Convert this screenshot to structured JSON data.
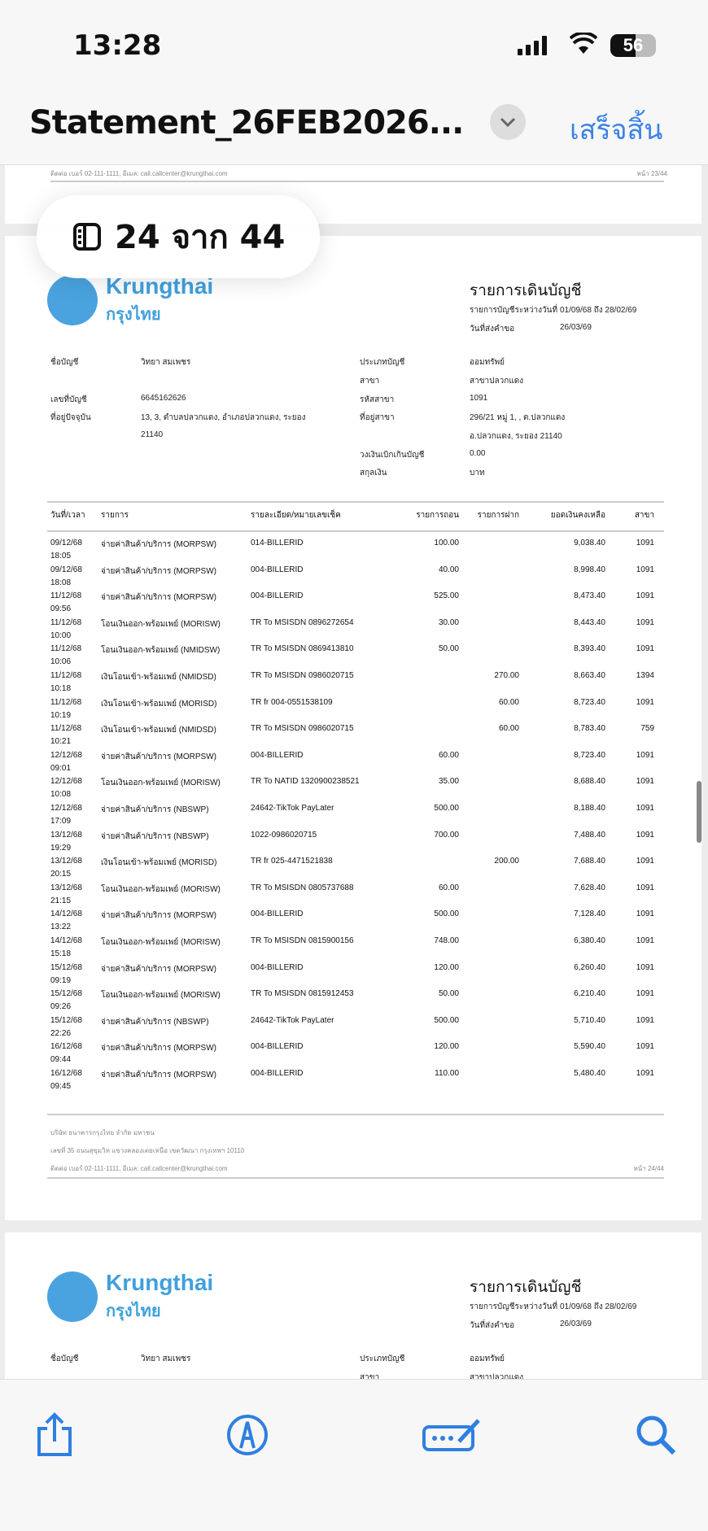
{
  "status_bar": {
    "time": "13:28",
    "battery": "56",
    "battery_level": 56
  },
  "nav": {
    "title": "Statement_26FEB2026...",
    "done": "เสร็จสิ้น"
  },
  "page_indicator": {
    "text": "24 จาก 44",
    "current": 24,
    "total": 44
  },
  "prev_page": {
    "footer_contact": "ติดต่อ เบอร์ 02-111-1111, อีเมล: call.callcenter@krungthai.com",
    "page_no": "หน้า 23/44"
  },
  "bank": {
    "name_en": "Krungthai",
    "name_th": "กรุงไทย",
    "brand_color": "#3fa0dc"
  },
  "statement": {
    "title": "รายการเดินบัญชี",
    "period_label": "รายการบัญชีระหว่างวันที่",
    "period": "01/09/68 ถึง 28/02/69",
    "request_label": "วันที่ส่งคำขอ",
    "request_date": "26/03/69"
  },
  "account": {
    "left": [
      {
        "label": "ชื่อบัญชี",
        "value": "วิทยา สมเพชร"
      },
      {
        "label": "เลขที่บัญชี",
        "value": "6645162626"
      },
      {
        "label": "ที่อยู่ปัจจุบัน",
        "value": "13, 3, ตำบลปลวกแดง, อำเภอปลวกแดง, ระยอง",
        "value2": "21140"
      }
    ],
    "right": [
      {
        "label": "ประเภทบัญชี",
        "value": "ออมทรัพย์"
      },
      {
        "label": "สาขา",
        "value": "สาขาปลวกแดง"
      },
      {
        "label": "รหัสสาขา",
        "value": "1091"
      },
      {
        "label": "ที่อยู่สาขา",
        "value": "296/21 หมู่ 1, , ต.ปลวกแดง",
        "value2": "อ.ปลวกแดง, ระยอง 21140"
      },
      {
        "label": "วงเงินเบิกเกินบัญชี",
        "value": "0.00"
      },
      {
        "label": "สกุลเงิน",
        "value": "บาท"
      }
    ]
  },
  "table": {
    "headers": [
      "วันที่/เวลา",
      "รายการ",
      "รายละเอียด/หมายเลขเช็ค",
      "รายการถอน",
      "รายการฝาก",
      "ยอดเงินคงเหลือ",
      "สาขา"
    ],
    "rows": [
      [
        "09/12/68",
        "18:05",
        "จ่ายค่าสินค้า/บริการ (MORPSW)",
        "014-BILLERID",
        "100.00",
        "",
        "9,038.40",
        "1091"
      ],
      [
        "09/12/68",
        "18:08",
        "จ่ายค่าสินค้า/บริการ (MORPSW)",
        "004-BILLERID",
        "40.00",
        "",
        "8,998.40",
        "1091"
      ],
      [
        "11/12/68",
        "09:56",
        "จ่ายค่าสินค้า/บริการ (MORPSW)",
        "004-BILLERID",
        "525.00",
        "",
        "8,473.40",
        "1091"
      ],
      [
        "11/12/68",
        "10:00",
        "โอนเงินออก-พร้อมเพย์ (MORISW)",
        "TR To MSISDN 0896272654",
        "30.00",
        "",
        "8,443.40",
        "1091"
      ],
      [
        "11/12/68",
        "10:06",
        "โอนเงินออก-พร้อมเพย์ (NMIDSW)",
        "TR To MSISDN 0869413810",
        "50.00",
        "",
        "8,393.40",
        "1091"
      ],
      [
        "11/12/68",
        "10:18",
        "เงินโอนเข้า-พร้อมเพย์ (NMIDSD)",
        "TR To MSISDN 0986020715",
        "",
        "270.00",
        "8,663.40",
        "1394"
      ],
      [
        "11/12/68",
        "10:19",
        "เงินโอนเข้า-พร้อมเพย์ (MORISD)",
        "TR fr 004-0551538109",
        "",
        "60.00",
        "8,723.40",
        "1091"
      ],
      [
        "11/12/68",
        "10:21",
        "เงินโอนเข้า-พร้อมเพย์ (NMIDSD)",
        "TR To MSISDN 0986020715",
        "",
        "60.00",
        "8,783.40",
        "759"
      ],
      [
        "12/12/68",
        "09:01",
        "จ่ายค่าสินค้า/บริการ (MORPSW)",
        "004-BILLERID",
        "60.00",
        "",
        "8,723.40",
        "1091"
      ],
      [
        "12/12/68",
        "10:08",
        "โอนเงินออก-พร้อมเพย์ (MORISW)",
        "TR To NATID 1320900238521",
        "35.00",
        "",
        "8,688.40",
        "1091"
      ],
      [
        "12/12/68",
        "17:09",
        "จ่ายค่าสินค้า/บริการ (NBSWP)",
        "24642-TikTok PayLater",
        "500.00",
        "",
        "8,188.40",
        "1091"
      ],
      [
        "13/12/68",
        "19:29",
        "จ่ายค่าสินค้า/บริการ (NBSWP)",
        "1022-0986020715",
        "700.00",
        "",
        "7,488.40",
        "1091"
      ],
      [
        "13/12/68",
        "20:15",
        "เงินโอนเข้า-พร้อมเพย์ (MORISD)",
        "TR fr 025-4471521838",
        "",
        "200.00",
        "7,688.40",
        "1091"
      ],
      [
        "13/12/68",
        "21:15",
        "โอนเงินออก-พร้อมเพย์ (MORISW)",
        "TR To MSISDN 0805737688",
        "60.00",
        "",
        "7,628.40",
        "1091"
      ],
      [
        "14/12/68",
        "13:22",
        "จ่ายค่าสินค้า/บริการ (MORPSW)",
        "004-BILLERID",
        "500.00",
        "",
        "7,128.40",
        "1091"
      ],
      [
        "14/12/68",
        "15:18",
        "โอนเงินออก-พร้อมเพย์ (MORISW)",
        "TR To MSISDN 0815900156",
        "748.00",
        "",
        "6,380.40",
        "1091"
      ],
      [
        "15/12/68",
        "09:19",
        "จ่ายค่าสินค้า/บริการ (MORPSW)",
        "004-BILLERID",
        "120.00",
        "",
        "6,260.40",
        "1091"
      ],
      [
        "15/12/68",
        "09:26",
        "โอนเงินออก-พร้อมเพย์ (MORISW)",
        "TR To MSISDN 0815912453",
        "50.00",
        "",
        "6,210.40",
        "1091"
      ],
      [
        "15/12/68",
        "22:26",
        "จ่ายค่าสินค้า/บริการ (NBSWP)",
        "24642-TikTok PayLater",
        "500.00",
        "",
        "5,710.40",
        "1091"
      ],
      [
        "16/12/68",
        "09:44",
        "จ่ายค่าสินค้า/บริการ (MORPSW)",
        "004-BILLERID",
        "120.00",
        "",
        "5,590.40",
        "1091"
      ],
      [
        "16/12/68",
        "09:45",
        "จ่ายค่าสินค้า/บริการ (MORPSW)",
        "004-BILLERID",
        "110.00",
        "",
        "5,480.40",
        "1091"
      ]
    ]
  },
  "footer": {
    "company": "บริษัท ธนาคารกรุงไทย จำกัด มหาชน",
    "address": "เลขที่ 35 ถนนสุขุมวิท แขวงคลองเตยเหนือ เขตวัฒนา กรุงเทพฯ 10110",
    "contact": "ติดต่อ เบอร์ 02-111-1111, อีเมล: call.callcenter@krungthai.com",
    "page_no": "หน้า 24/44"
  },
  "next_page": {
    "bank_en": "Krungthai",
    "bank_th": "กรุงไทย",
    "title": "รายการเดินบัญชี",
    "period_label": "รายการบัญชีระหว่างวันที่",
    "period": "01/09/68 ถึง 28/02/69",
    "request_label": "วันที่ส่งคำขอ",
    "request_date": "26/03/69",
    "name_label": "ชื่อบัญชี",
    "name": "วิทยา สมเพชร",
    "type_label": "ประเภทบัญชี",
    "type": "ออมทรัพย์",
    "branch_label": "สาขา",
    "branch": "สาขาปลวกแดง"
  },
  "toolbar": {
    "icons": [
      "share-icon",
      "markup-icon",
      "autofill-icon",
      "search-icon"
    ],
    "accent": "#2f7fe0"
  }
}
